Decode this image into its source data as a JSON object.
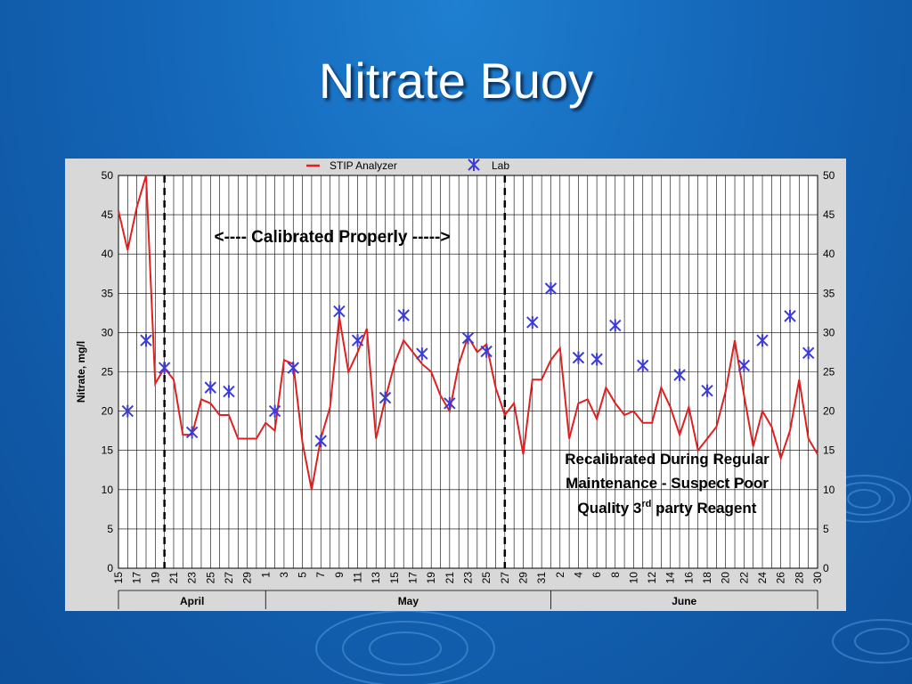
{
  "slide": {
    "title": "Nitrate Buoy"
  },
  "chart_data": {
    "type": "line",
    "ylabel": "Nitrate, mg/l",
    "ylim": [
      0,
      50
    ],
    "yticks": [
      0,
      5,
      10,
      15,
      20,
      25,
      30,
      35,
      40,
      45,
      50
    ],
    "x_tick_labels": [
      "15",
      "17",
      "19",
      "21",
      "23",
      "25",
      "27",
      "29",
      "1",
      "3",
      "5",
      "7",
      "9",
      "11",
      "13",
      "15",
      "17",
      "19",
      "21",
      "23",
      "25",
      "27",
      "29",
      "31",
      "2",
      "4",
      "6",
      "8",
      "10",
      "12",
      "14",
      "16",
      "18",
      "20",
      "22",
      "24",
      "26",
      "28",
      "30"
    ],
    "x_range_day_index": [
      0,
      76
    ],
    "months": [
      {
        "label": "April",
        "start": 0,
        "end": 16
      },
      {
        "label": "May",
        "start": 16,
        "end": 47
      },
      {
        "label": "June",
        "start": 47,
        "end": 77
      }
    ],
    "legend": [
      {
        "name": "STIP Analyzer",
        "color": "#e02020",
        "marker": "line"
      },
      {
        "name": "Lab",
        "color": "#3b3bd6",
        "marker": "asterisk"
      }
    ],
    "legend_position": "top-center",
    "grid": true,
    "series": [
      {
        "name": "STIP Analyzer",
        "color": "#e02020",
        "x": [
          0,
          1,
          2,
          3,
          4,
          5,
          6,
          7,
          8,
          9,
          10,
          11,
          12,
          13,
          14,
          15,
          16,
          17,
          18,
          19,
          20,
          21,
          22,
          23,
          24,
          25,
          26,
          27,
          28,
          29,
          30,
          31,
          32,
          33,
          34,
          35,
          36,
          37,
          38,
          39,
          40,
          41,
          42,
          43,
          44,
          45,
          46,
          47,
          48,
          49,
          50,
          51,
          52,
          53,
          54,
          55,
          56,
          57,
          58,
          59,
          60,
          61,
          62,
          63,
          64,
          65,
          66,
          67,
          68,
          69,
          70,
          71,
          72,
          73,
          74,
          75,
          76
        ],
        "values": [
          45.5,
          40.5,
          46,
          50,
          23.5,
          25.5,
          24,
          17,
          17,
          21.5,
          21,
          19.5,
          19.5,
          16.5,
          16.5,
          16.5,
          18.5,
          17.5,
          26.5,
          26,
          16,
          10,
          16.5,
          20.5,
          32,
          25,
          27.5,
          30.5,
          16.5,
          21.5,
          26,
          29,
          27.5,
          26,
          25,
          22,
          20,
          26,
          29.5,
          27.5,
          28.5,
          23,
          19.5,
          21,
          14.5,
          24,
          24,
          26.5,
          28,
          16.5,
          21,
          21.5,
          19,
          23,
          21,
          19.5,
          20,
          18.5,
          18.5,
          23,
          20.5,
          17,
          20.5,
          15,
          16.5,
          18,
          22.5,
          29,
          22,
          15.5,
          20,
          18,
          14,
          17.5,
          24,
          16.5,
          14.5
        ]
      },
      {
        "name": "Lab",
        "color": "#3b3bd6",
        "x": [
          1,
          3,
          5,
          8,
          10,
          12,
          17,
          19,
          22,
          24,
          26,
          29,
          31,
          33,
          36,
          38,
          40,
          45,
          47,
          50,
          52,
          54,
          57,
          61,
          64,
          68,
          70,
          73,
          75
        ],
        "values": [
          20,
          29,
          25.5,
          17.3,
          23,
          22.5,
          20,
          25.5,
          16.2,
          32.7,
          29,
          21.7,
          32.2,
          27.3,
          21,
          29.3,
          27.6,
          31.3,
          35.6,
          26.8,
          26.6,
          30.9,
          25.8,
          24.6,
          22.6,
          25.8,
          29,
          32.1,
          27.4
        ]
      }
    ],
    "annotations": {
      "calibrated": "<---- Calibrated Properly ----->",
      "recal_line1": "Recalibrated During Regular",
      "recal_line2": "Maintenance - Suspect Poor",
      "recal_line3_pre": "Quality 3",
      "recal_line3_sup": "rd",
      "recal_line3_post": " party Reagent"
    },
    "dashed_markers": [
      5,
      42
    ]
  }
}
